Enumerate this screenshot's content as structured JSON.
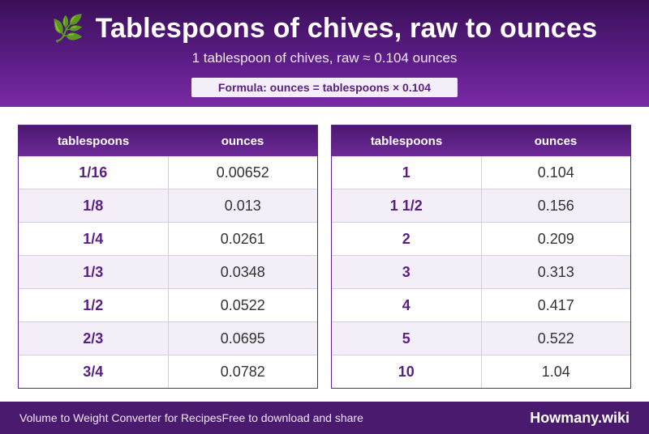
{
  "header": {
    "icon": "herb-icon",
    "icon_glyph": "🌿",
    "title": "Tablespoons of chives, raw to ounces",
    "subtitle": "1 tablespoon of chives, raw ≈ 0.104 ounces",
    "formula": "Formula: ounces = tablespoons × 0.104"
  },
  "tables": {
    "left": {
      "headers": [
        "tablespoons",
        "ounces"
      ],
      "rows": [
        [
          "1/16",
          "0.00652"
        ],
        [
          "1/8",
          "0.013"
        ],
        [
          "1/4",
          "0.0261"
        ],
        [
          "1/3",
          "0.0348"
        ],
        [
          "1/2",
          "0.0522"
        ],
        [
          "2/3",
          "0.0695"
        ],
        [
          "3/4",
          "0.0782"
        ]
      ]
    },
    "right": {
      "headers": [
        "tablespoons",
        "ounces"
      ],
      "rows": [
        [
          "1",
          "0.104"
        ],
        [
          "1 1/2",
          "0.156"
        ],
        [
          "2",
          "0.209"
        ],
        [
          "3",
          "0.313"
        ],
        [
          "4",
          "0.417"
        ],
        [
          "5",
          "0.522"
        ],
        [
          "10",
          "1.04"
        ]
      ]
    }
  },
  "footer": {
    "left_text": "Volume to Weight Converter for Recipes",
    "middle_text": "Free to download and share",
    "brand": "Howmany.wiki"
  },
  "colors": {
    "header_dark": "#3a0f58",
    "header_light": "#7a2aa5",
    "accent": "#5a1f82",
    "row_alt": "#f4eef8",
    "footer": "#4a1a6e"
  }
}
